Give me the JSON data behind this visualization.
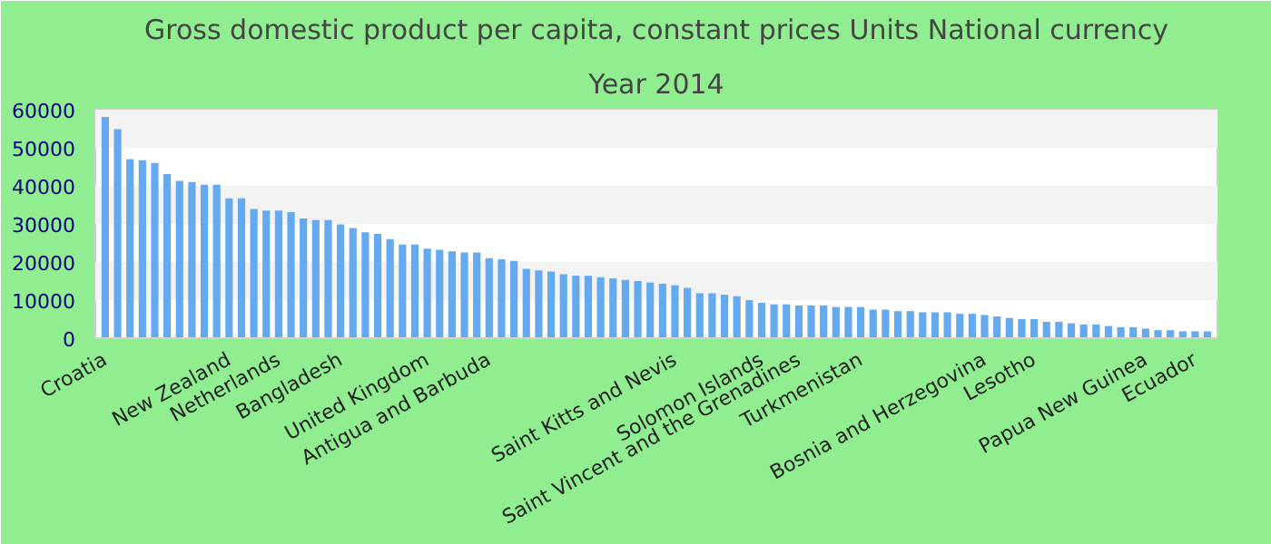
{
  "chart_data": {
    "type": "bar",
    "title": "Gross domestic product per capita, constant prices Units National currency",
    "subtitle": "Year 2014",
    "categories": [
      "Croatia",
      null,
      null,
      null,
      null,
      null,
      null,
      null,
      null,
      null,
      "New Zealand",
      null,
      null,
      null,
      "Netherlands",
      null,
      null,
      null,
      null,
      "Bangladesh",
      null,
      null,
      null,
      null,
      null,
      null,
      "United Kingdom",
      null,
      null,
      null,
      null,
      "Antigua and Barbuda",
      null,
      null,
      null,
      null,
      null,
      null,
      null,
      null,
      null,
      null,
      null,
      null,
      null,
      null,
      "Saint Kitts and Nevis",
      null,
      null,
      null,
      null,
      null,
      null,
      "Solomon Islands",
      null,
      null,
      "Saint Vincent and the Grenadines",
      null,
      null,
      null,
      null,
      "Turkmenistan",
      null,
      null,
      null,
      null,
      null,
      null,
      null,
      null,
      null,
      "Bosnia and Herzegovina",
      null,
      null,
      null,
      "Lesotho",
      null,
      null,
      null,
      null,
      null,
      null,
      null,
      null,
      "Papua New Guinea",
      null,
      null,
      null,
      "Ecuador",
      null
    ],
    "values": [
      58100,
      54900,
      47000,
      46700,
      46000,
      43100,
      41300,
      41000,
      40300,
      40300,
      36700,
      36700,
      33900,
      33500,
      33500,
      33100,
      31400,
      31000,
      31000,
      29900,
      28900,
      27800,
      27400,
      26000,
      24600,
      24600,
      23500,
      23200,
      22800,
      22500,
      22500,
      21000,
      20700,
      20300,
      18200,
      17800,
      17500,
      16800,
      16400,
      16400,
      16000,
      15700,
      15300,
      15000,
      14600,
      14300,
      13900,
      13200,
      11800,
      11800,
      11400,
      11000,
      10000,
      9300,
      8900,
      8900,
      8600,
      8600,
      8600,
      8200,
      8200,
      8200,
      7500,
      7500,
      7100,
      7100,
      6800,
      6800,
      6800,
      6400,
      6400,
      6100,
      5700,
      5300,
      5000,
      5000,
      4300,
      4300,
      3900,
      3600,
      3600,
      3200,
      2900,
      2900,
      2500,
      2100,
      2100,
      1800,
      1800,
      1800
    ],
    "color": "#65a9ef",
    "ylim": [
      0,
      60000
    ],
    "yticks": [
      0,
      10000,
      20000,
      30000,
      40000,
      50000,
      60000
    ]
  }
}
